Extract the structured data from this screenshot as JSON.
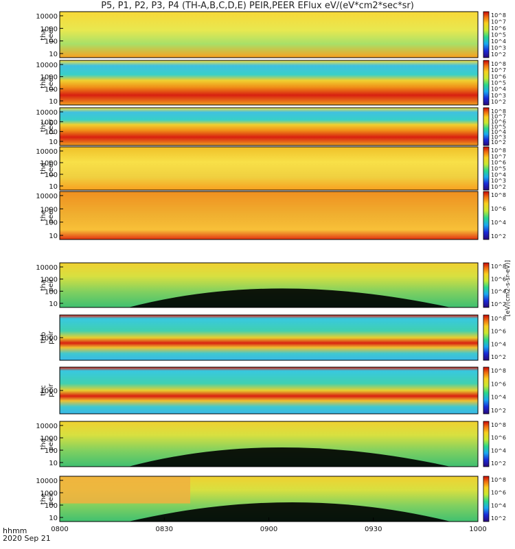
{
  "title": "P5, P1, P2, P3, P4 (TH-A,B,C,D,E) PEIR,PEER EFlux eV/(eV*cm2*sec*sr)",
  "footer": {
    "time_label": "hhmm",
    "date_label": "2020 Sep 21"
  },
  "colorbar_label": "[eV/(cm2-s-sr-eV)]",
  "chart_data": {
    "type": "heatmap",
    "x_ticks": [
      "0800",
      "0830",
      "0900",
      "0930",
      "1000"
    ],
    "x_range": [
      "08:00",
      "10:00"
    ],
    "panels": [
      {
        "probe": "tha",
        "product": "peer",
        "y_ticks": [
          "10000",
          "1000",
          "100",
          "10"
        ],
        "colorbar_ticks": [
          "10^8",
          "10^7",
          "10^6",
          "10^5",
          "10^4",
          "10^3",
          "10^2"
        ]
      },
      {
        "probe": "thb",
        "product": "peer",
        "y_ticks": [
          "10000",
          "1000",
          "100",
          "10"
        ],
        "colorbar_ticks": [
          "10^8",
          "10^7",
          "10^6",
          "10^5",
          "10^4",
          "10^3",
          "10^2"
        ]
      },
      {
        "probe": "thc",
        "product": "peer",
        "y_ticks": [
          "10000",
          "1000",
          "100",
          "10"
        ],
        "colorbar_ticks": [
          "10^8",
          "10^7",
          "10^6",
          "10^5",
          "10^4",
          "10^3",
          "10^2"
        ]
      },
      {
        "probe": "thd",
        "product": "peer",
        "y_ticks": [
          "10000",
          "1000",
          "100",
          "10"
        ],
        "colorbar_ticks": [
          "10^8",
          "10^7",
          "10^6",
          "10^5",
          "10^4",
          "10^3",
          "10^2"
        ]
      },
      {
        "probe": "the",
        "product": "peer",
        "y_ticks": [
          "10000",
          "1000",
          "100",
          "10"
        ],
        "colorbar_ticks": [
          "10^8",
          "10^6",
          "10^4",
          "10^2"
        ]
      },
      {
        "probe": "tha",
        "product": "peir",
        "y_ticks": [
          "10000",
          "1000",
          "100",
          "10"
        ],
        "colorbar_ticks": [
          "10^8",
          "10^6",
          "10^4",
          "10^2"
        ]
      },
      {
        "probe": "thb",
        "product": "peir",
        "y_ticks": [
          "1000"
        ],
        "colorbar_ticks": [
          "10^8",
          "10^6",
          "10^4",
          "10^2"
        ]
      },
      {
        "probe": "thc",
        "product": "peir",
        "y_ticks": [
          "1000"
        ],
        "colorbar_ticks": [
          "10^8",
          "10^6",
          "10^4",
          "10^2"
        ]
      },
      {
        "probe": "thd",
        "product": "peir",
        "y_ticks": [
          "10000",
          "1000",
          "100",
          "10"
        ],
        "colorbar_ticks": [
          "10^8",
          "10^6",
          "10^4",
          "10^2"
        ]
      },
      {
        "probe": "the",
        "product": "peir",
        "y_ticks": [
          "10000",
          "1000",
          "100",
          "10"
        ],
        "colorbar_ticks": [
          "10^8",
          "10^6",
          "10^4",
          "10^2"
        ]
      }
    ]
  }
}
